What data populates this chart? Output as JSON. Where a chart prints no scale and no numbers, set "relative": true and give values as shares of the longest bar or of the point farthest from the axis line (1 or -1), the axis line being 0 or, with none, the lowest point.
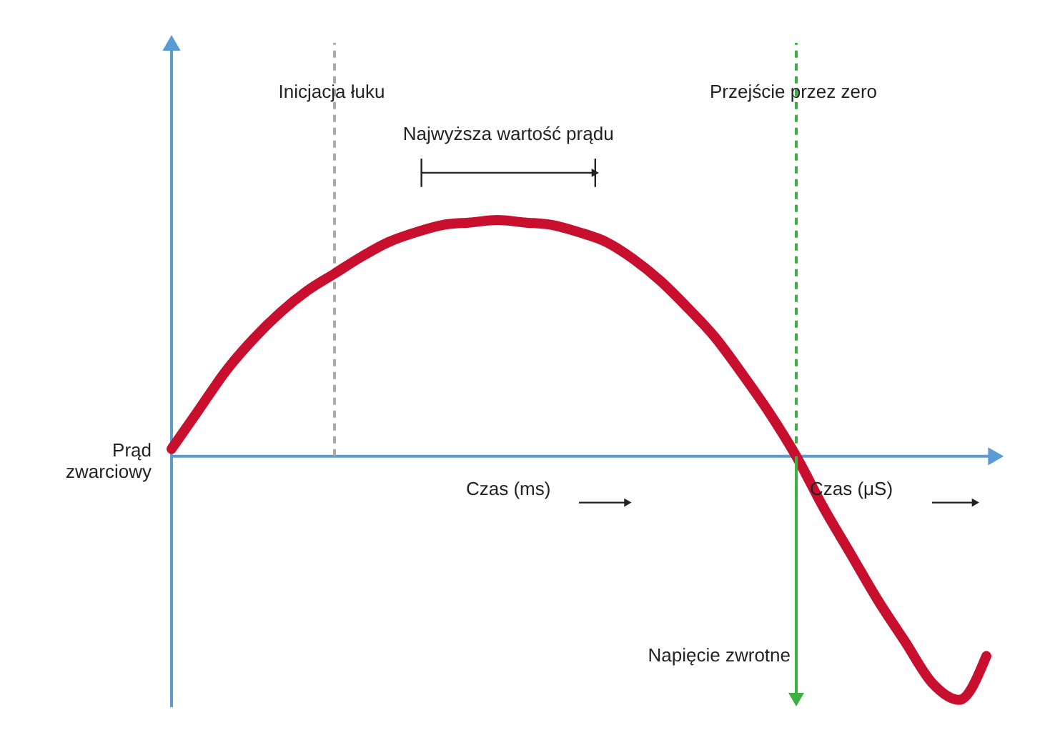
{
  "chart_data": {
    "type": "line",
    "relative": true,
    "marker": "none",
    "line_style": "solid",
    "categories": [
      null,
      null,
      null,
      null,
      null,
      null,
      null,
      null,
      null,
      null,
      null,
      null,
      null,
      null,
      null,
      null,
      null,
      null,
      null,
      null,
      null,
      null,
      null,
      null,
      null,
      null,
      null,
      null,
      null,
      null,
      null
    ],
    "series": [
      {
        "color": "#c8102e",
        "values": [
          0.03,
          0.19,
          0.35,
          0.48,
          0.59,
          0.68,
          0.75,
          0.82,
          0.88,
          0.92,
          0.95,
          0.96,
          0.97,
          0.96,
          0.95,
          0.92,
          0.88,
          0.81,
          0.72,
          0.61,
          0.49,
          0.34,
          0.18,
          0,
          -0.21,
          -0.4,
          -0.59,
          -0.76,
          -0.93,
          -1,
          -0.82
        ]
      }
    ],
    "xlabel": "Czas (ms)",
    "ylabel": "Prąd zwarciowy",
    "annotations": [
      "Najwyższa wartość prądu",
      "Czas (μS)",
      "Napięcie zwrotne",
      "Inicjacja łuku",
      "Przejście przez zero"
    ],
    "ref_lines": [
      {
        "axis": "y",
        "value": 0,
        "color": "#5b9bd5",
        "line_style": "solid"
      }
    ]
  }
}
